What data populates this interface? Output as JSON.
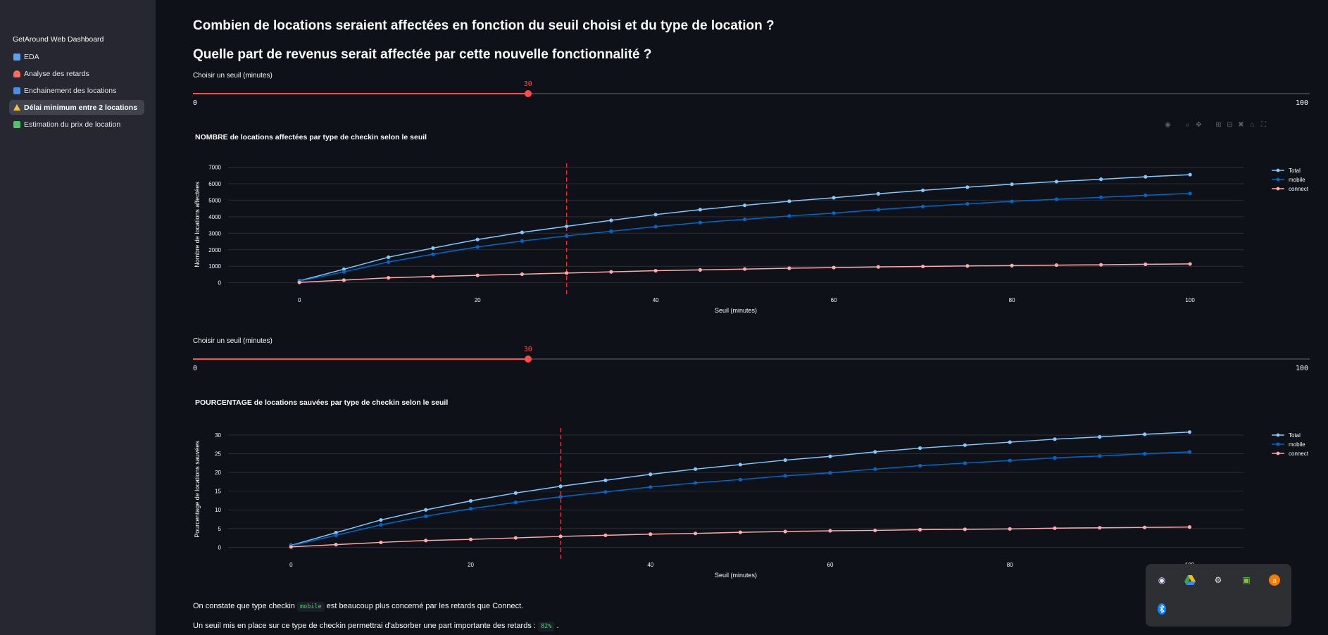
{
  "sidebar": {
    "title": "GetAround Web Dashboard",
    "items": [
      {
        "label": "EDA",
        "icon": "chart-icon",
        "color": "#5ea0ef"
      },
      {
        "label": "Analyse des retards",
        "icon": "siren-icon",
        "color": "#ff6b5b"
      },
      {
        "label": "Enchainement des locations",
        "icon": "fast-forward-icon",
        "color": "#4a8fe7"
      },
      {
        "label": "Délai minimum entre 2 locations",
        "icon": "warning-icon",
        "color": "#f5c542",
        "active": true
      },
      {
        "label": "Estimation du prix de location",
        "icon": "money-icon",
        "color": "#53c26b"
      }
    ]
  },
  "main": {
    "question1": "Combien de locations seraient affectées en fonction du seuil choisi et du type de location ?",
    "question2": "Quelle part de revenus serait affectée par cette nouvelle fonctionnalité ?",
    "slider1": {
      "label": "Choisir un seuil (minutes)",
      "value": 30,
      "min": 0,
      "max": 100
    },
    "slider2": {
      "label": "Choisir un seuil (minutes)",
      "value": 30,
      "min": 0,
      "max": 100
    },
    "conclusion_pre": "On constate que type checkin",
    "conclusion_code": "mobile",
    "conclusion_post": "est beaucoup plus concerné par les retards que Connect.",
    "conclusion2_pre": "Un seuil mis en place sur ce type de checkin permettrai d'absorber une part importante des retards :",
    "conclusion2_code": "82%",
    "conclusion2_post": "."
  },
  "colors": {
    "accent": "#ff4b4b",
    "total": "#83c9ff",
    "mobile": "#0068c9",
    "connect": "#ffabab"
  },
  "chart_data": [
    {
      "type": "line",
      "title": "NOMBRE de locations affectées par type de checkin selon le seuil",
      "xlabel": "Seuil (minutes)",
      "ylabel": "Nombre de locations affectées",
      "x": [
        0,
        5,
        10,
        15,
        20,
        25,
        30,
        35,
        40,
        45,
        50,
        55,
        60,
        65,
        70,
        75,
        80,
        85,
        90,
        95,
        100
      ],
      "xticks": [
        0,
        20,
        40,
        60,
        80,
        100
      ],
      "yticks": [
        0,
        1000,
        2000,
        3000,
        4000,
        5000,
        6000,
        7000
      ],
      "xlim": [
        -8,
        106
      ],
      "ylim": [
        -100,
        7150
      ],
      "threshold": 30,
      "legend": "top-right",
      "series": [
        {
          "name": "Total",
          "values": [
            120,
            820,
            1550,
            2100,
            2620,
            3050,
            3420,
            3780,
            4130,
            4430,
            4690,
            4940,
            5150,
            5390,
            5600,
            5790,
            5970,
            6130,
            6270,
            6420,
            6550
          ]
        },
        {
          "name": "mobile",
          "values": [
            100,
            660,
            1260,
            1730,
            2170,
            2530,
            2840,
            3120,
            3400,
            3650,
            3840,
            4050,
            4220,
            4430,
            4620,
            4780,
            4930,
            5060,
            5180,
            5300,
            5410
          ]
        },
        {
          "name": "connect",
          "values": [
            20,
            160,
            300,
            380,
            450,
            520,
            590,
            660,
            730,
            780,
            830,
            880,
            920,
            960,
            990,
            1020,
            1040,
            1070,
            1090,
            1120,
            1140
          ]
        }
      ]
    },
    {
      "type": "line",
      "title": "POURCENTAGE de locations sauvées par type de checkin selon le seuil",
      "xlabel": "Seuil (minutes)",
      "ylabel": "Pourcentage de locations sauvées",
      "x": [
        0,
        5,
        10,
        15,
        20,
        25,
        30,
        35,
        40,
        45,
        50,
        55,
        60,
        65,
        70,
        75,
        80,
        85,
        90,
        95,
        100
      ],
      "xticks": [
        0,
        20,
        40,
        60,
        80,
        100
      ],
      "yticks": [
        0,
        5,
        10,
        15,
        20,
        25,
        30
      ],
      "xlim": [
        -7,
        106
      ],
      "ylim": [
        -0.5,
        31.5
      ],
      "threshold": 30,
      "legend": "top-right",
      "series": [
        {
          "name": "Total",
          "values": [
            0.5,
            3.9,
            7.3,
            10.0,
            12.4,
            14.5,
            16.3,
            17.9,
            19.5,
            20.9,
            22.1,
            23.3,
            24.3,
            25.5,
            26.5,
            27.3,
            28.1,
            28.9,
            29.5,
            30.2,
            30.8
          ]
        },
        {
          "name": "mobile",
          "values": [
            0.4,
            3.2,
            6.0,
            8.3,
            10.3,
            12.0,
            13.5,
            14.8,
            16.1,
            17.2,
            18.1,
            19.1,
            19.9,
            20.9,
            21.8,
            22.5,
            23.2,
            23.9,
            24.4,
            25.0,
            25.5
          ]
        },
        {
          "name": "connect",
          "values": [
            0.1,
            0.7,
            1.3,
            1.8,
            2.1,
            2.5,
            2.9,
            3.2,
            3.5,
            3.7,
            4.0,
            4.2,
            4.4,
            4.5,
            4.7,
            4.8,
            4.9,
            5.1,
            5.2,
            5.3,
            5.4
          ]
        }
      ]
    }
  ]
}
